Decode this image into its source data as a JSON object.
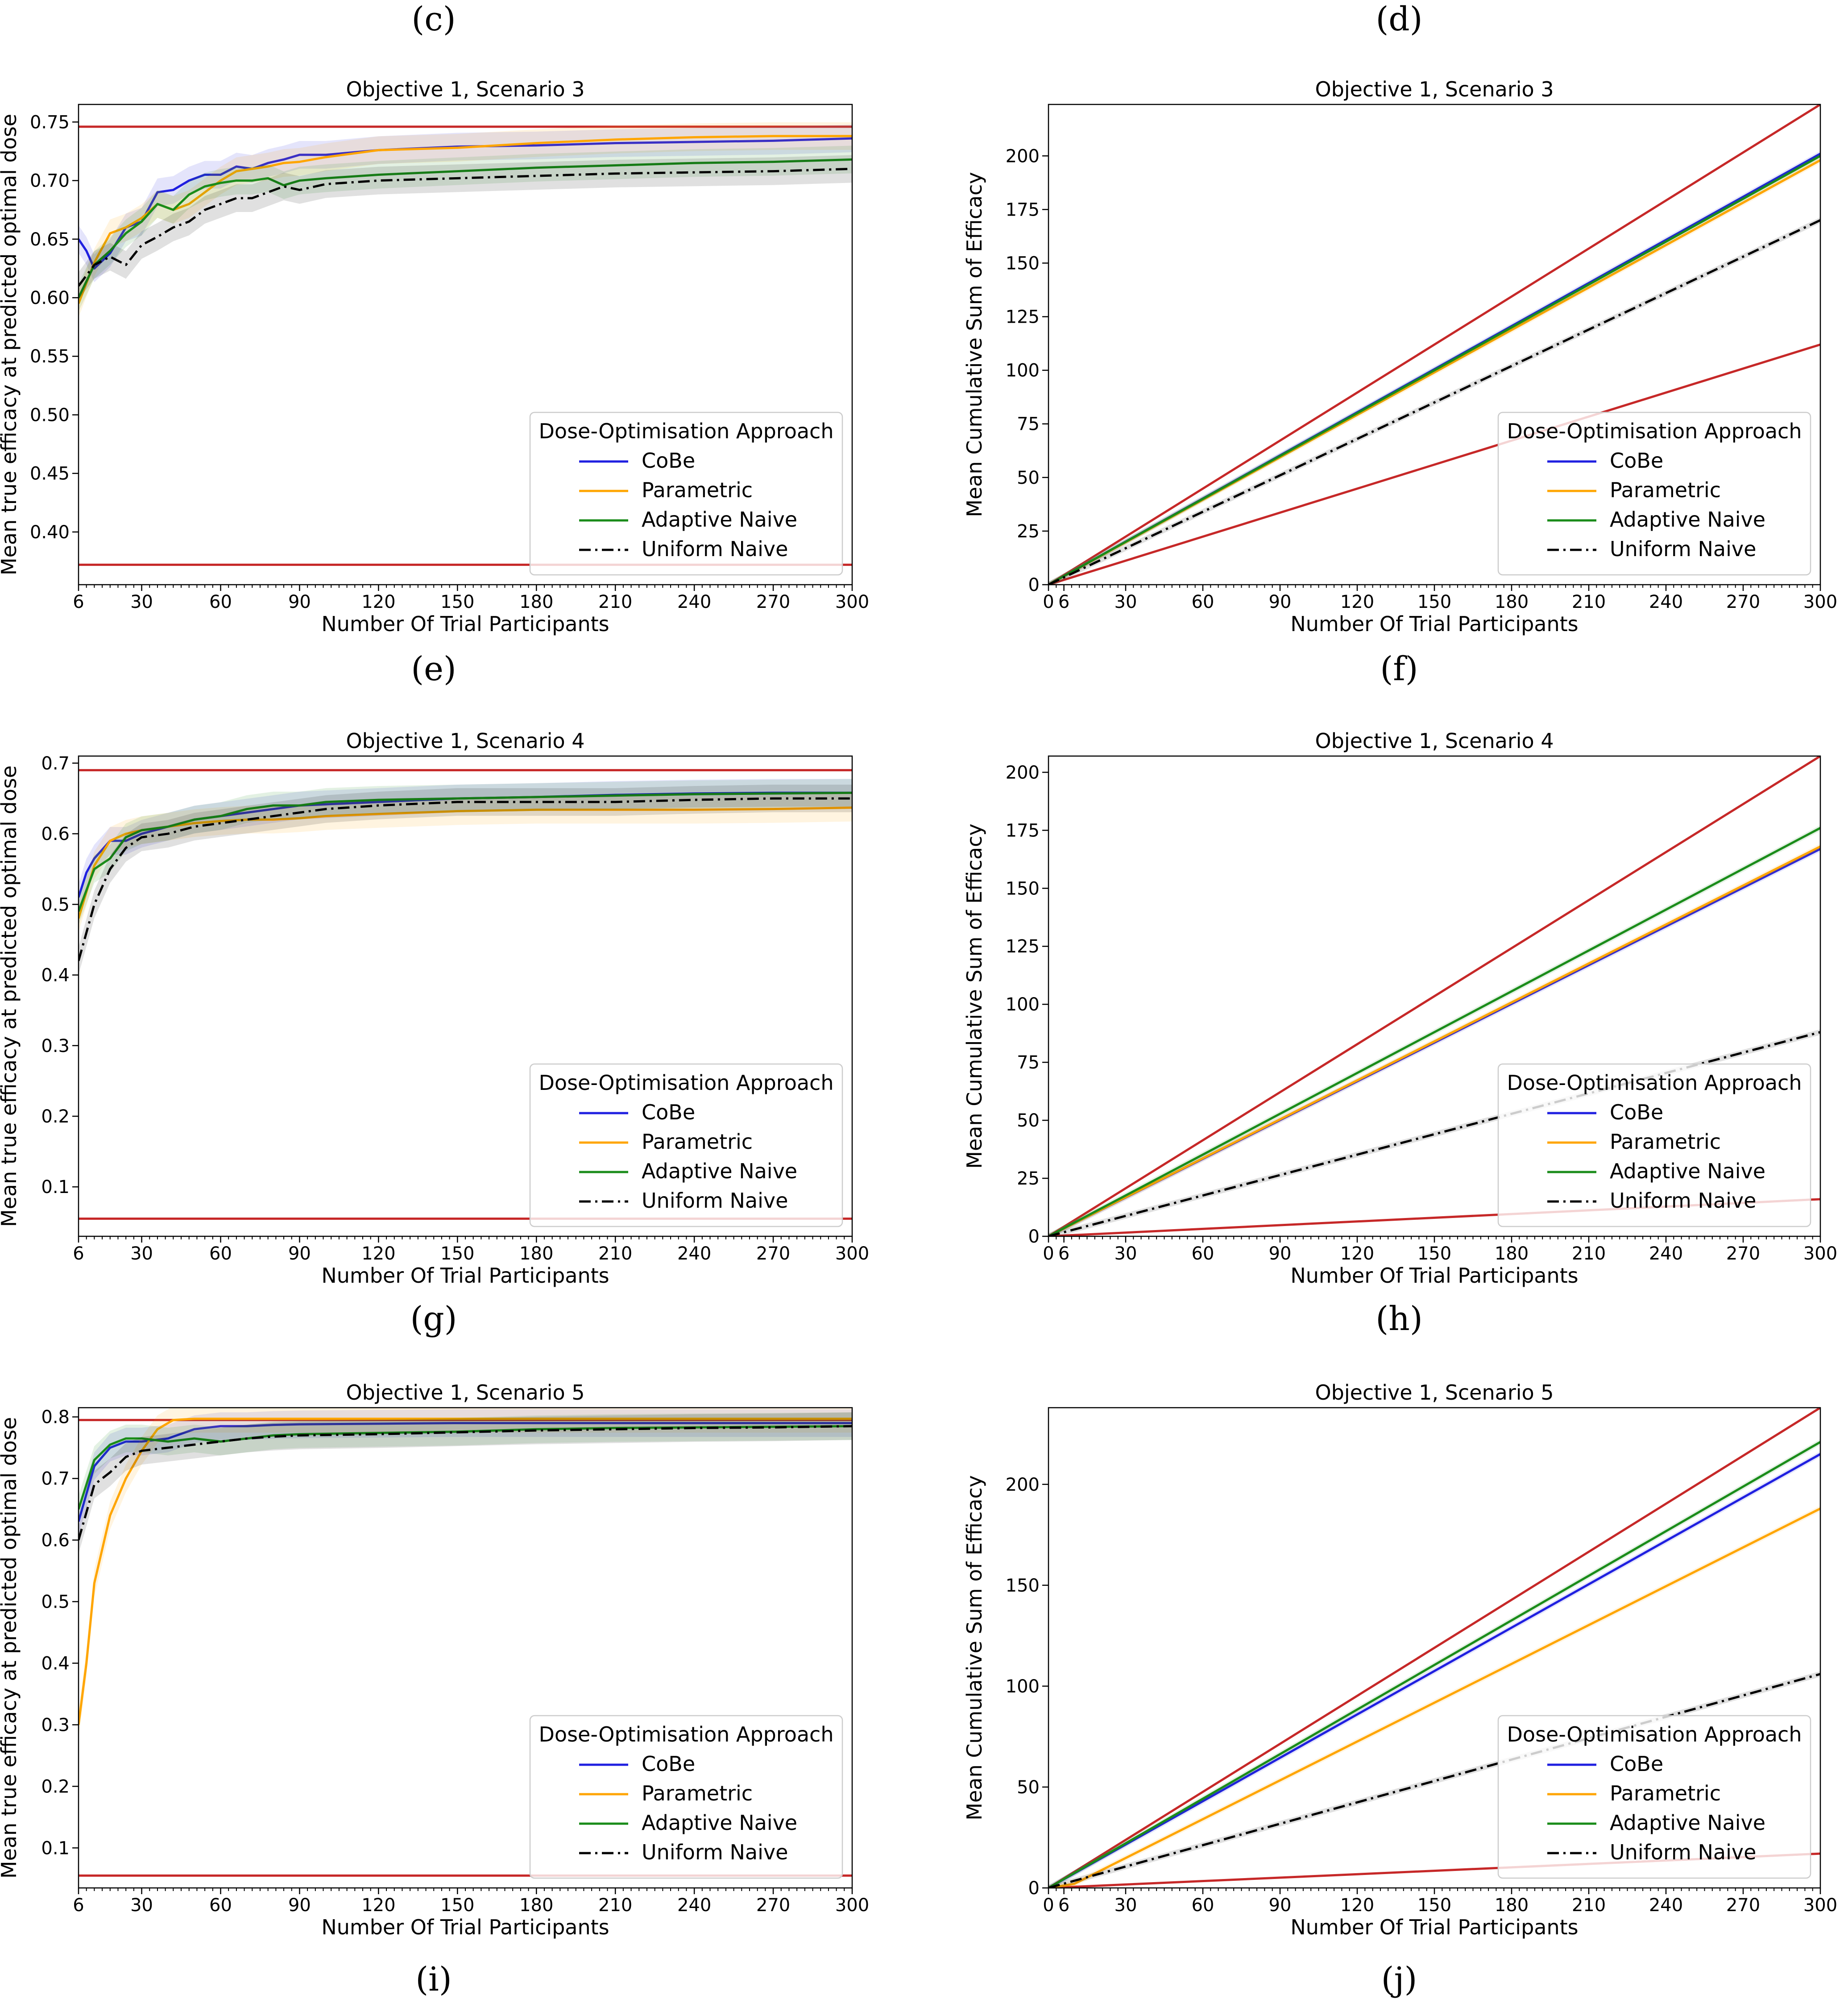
{
  "panel_labels": [
    "(c)",
    "(d)",
    "(e)",
    "(f)",
    "(g)",
    "(h)",
    "(i)",
    "(j)"
  ],
  "legend": {
    "title": "Dose-Optimisation Approach",
    "entries": [
      {
        "name": "CoBe",
        "color": "#1f1fe0",
        "dash": "solid"
      },
      {
        "name": "Parametric",
        "color": "#ffa500",
        "dash": "solid"
      },
      {
        "name": "Adaptive Naive",
        "color": "#1a8c1a",
        "dash": "solid"
      },
      {
        "name": "Uniform Naive",
        "color": "#000000",
        "dash": "dashdot"
      }
    ]
  },
  "reference_color": "#c62828",
  "chart_data": [
    {
      "type": "line",
      "title": "Objective 1, Scenario 3",
      "xlabel": "Number Of Trial Participants",
      "ylabel": "Mean true efficacy at predicted optimal dose",
      "xlim": [
        6,
        300
      ],
      "ylim": [
        0.355,
        0.765
      ],
      "xticks": [
        6,
        30,
        60,
        90,
        120,
        150,
        180,
        210,
        240,
        270,
        300
      ],
      "yticks": [
        0.4,
        0.45,
        0.5,
        0.55,
        0.6,
        0.65,
        0.7,
        0.75
      ],
      "ytick_labels": [
        "0.40",
        "0.45",
        "0.50",
        "0.55",
        "0.60",
        "0.65",
        "0.70",
        "0.75"
      ],
      "reference_lines": [
        {
          "x": [
            6,
            300
          ],
          "y": [
            0.746,
            0.746
          ]
        },
        {
          "x": [
            6,
            300
          ],
          "y": [
            0.372,
            0.372
          ]
        }
      ],
      "series": [
        {
          "name": "CoBe",
          "x": [
            6,
            9,
            12,
            18,
            24,
            30,
            36,
            42,
            48,
            54,
            60,
            66,
            72,
            78,
            84,
            90,
            100,
            120,
            150,
            180,
            210,
            240,
            270,
            300
          ],
          "y": [
            0.65,
            0.64,
            0.625,
            0.638,
            0.66,
            0.665,
            0.69,
            0.692,
            0.7,
            0.705,
            0.705,
            0.712,
            0.71,
            0.715,
            0.718,
            0.722,
            0.722,
            0.726,
            0.729,
            0.73,
            0.732,
            0.733,
            0.734,
            0.736
          ]
        },
        {
          "name": "Parametric",
          "x": [
            6,
            12,
            18,
            24,
            30,
            36,
            42,
            48,
            54,
            60,
            66,
            72,
            78,
            84,
            90,
            100,
            120,
            150,
            180,
            210,
            240,
            270,
            300
          ],
          "y": [
            0.595,
            0.63,
            0.655,
            0.66,
            0.668,
            0.68,
            0.675,
            0.68,
            0.69,
            0.7,
            0.708,
            0.71,
            0.712,
            0.715,
            0.716,
            0.72,
            0.726,
            0.728,
            0.732,
            0.735,
            0.737,
            0.738,
            0.738
          ]
        },
        {
          "name": "Adaptive Naive",
          "x": [
            6,
            12,
            18,
            24,
            30,
            36,
            42,
            48,
            54,
            60,
            66,
            72,
            78,
            84,
            90,
            100,
            120,
            150,
            180,
            210,
            240,
            270,
            300
          ],
          "y": [
            0.6,
            0.628,
            0.64,
            0.655,
            0.665,
            0.68,
            0.675,
            0.688,
            0.695,
            0.698,
            0.7,
            0.7,
            0.702,
            0.696,
            0.7,
            0.702,
            0.705,
            0.708,
            0.711,
            0.713,
            0.715,
            0.716,
            0.718
          ]
        },
        {
          "name": "Uniform Naive",
          "x": [
            6,
            12,
            18,
            24,
            30,
            36,
            42,
            48,
            54,
            60,
            66,
            72,
            78,
            84,
            90,
            100,
            120,
            150,
            180,
            210,
            240,
            270,
            300
          ],
          "y": [
            0.61,
            0.628,
            0.635,
            0.628,
            0.645,
            0.652,
            0.66,
            0.665,
            0.675,
            0.68,
            0.685,
            0.685,
            0.69,
            0.695,
            0.692,
            0.697,
            0.7,
            0.702,
            0.704,
            0.706,
            0.707,
            0.708,
            0.71
          ]
        }
      ]
    },
    {
      "type": "line",
      "title": "Objective 1, Scenario 3",
      "xlabel": "Number Of Trial Participants",
      "ylabel": "Mean Cumulative Sum of Efficacy",
      "xlim": [
        0,
        300
      ],
      "ylim": [
        0,
        224
      ],
      "xticks": [
        0,
        6,
        30,
        60,
        90,
        120,
        150,
        180,
        210,
        240,
        270,
        300
      ],
      "yticks": [
        0,
        25,
        50,
        75,
        100,
        125,
        150,
        175,
        200
      ],
      "ytick_labels": [
        "0",
        "25",
        "50",
        "75",
        "100",
        "125",
        "150",
        "175",
        "200"
      ],
      "reference_lines": [
        {
          "x": [
            0,
            300
          ],
          "y": [
            0,
            224
          ]
        },
        {
          "x": [
            0,
            300
          ],
          "y": [
            0,
            112
          ]
        }
      ],
      "series": [
        {
          "name": "CoBe",
          "x": [
            0,
            300
          ],
          "y": [
            0,
            201
          ]
        },
        {
          "name": "Parametric",
          "x": [
            0,
            300
          ],
          "y": [
            0,
            198
          ]
        },
        {
          "name": "Adaptive Naive",
          "x": [
            0,
            300
          ],
          "y": [
            0,
            200
          ]
        },
        {
          "name": "Uniform Naive",
          "x": [
            0,
            300
          ],
          "y": [
            0,
            170
          ]
        }
      ]
    },
    {
      "type": "line",
      "title": "Objective 1, Scenario 4",
      "xlabel": "Number Of Trial Participants",
      "ylabel": "Mean true efficacy at predicted optimal dose",
      "xlim": [
        6,
        300
      ],
      "ylim": [
        0.03,
        0.71
      ],
      "xticks": [
        6,
        30,
        60,
        90,
        120,
        150,
        180,
        210,
        240,
        270,
        300
      ],
      "yticks": [
        0.1,
        0.2,
        0.3,
        0.4,
        0.5,
        0.6,
        0.7
      ],
      "ytick_labels": [
        "0.1",
        "0.2",
        "0.3",
        "0.4",
        "0.5",
        "0.6",
        "0.7"
      ],
      "reference_lines": [
        {
          "x": [
            6,
            300
          ],
          "y": [
            0.69,
            0.69
          ]
        },
        {
          "x": [
            6,
            300
          ],
          "y": [
            0.055,
            0.055
          ]
        }
      ],
      "series": [
        {
          "name": "CoBe",
          "x": [
            6,
            9,
            12,
            18,
            24,
            30,
            40,
            50,
            60,
            70,
            80,
            90,
            120,
            150,
            180,
            210,
            240,
            270,
            300
          ],
          "y": [
            0.51,
            0.545,
            0.565,
            0.59,
            0.59,
            0.6,
            0.61,
            0.62,
            0.625,
            0.63,
            0.635,
            0.64,
            0.645,
            0.65,
            0.652,
            0.655,
            0.657,
            0.658,
            0.658
          ]
        },
        {
          "name": "Parametric",
          "x": [
            6,
            12,
            18,
            24,
            30,
            40,
            50,
            60,
            70,
            80,
            90,
            100,
            120,
            150,
            180,
            210,
            240,
            270,
            300
          ],
          "y": [
            0.48,
            0.555,
            0.59,
            0.6,
            0.605,
            0.61,
            0.615,
            0.618,
            0.62,
            0.62,
            0.622,
            0.625,
            0.628,
            0.632,
            0.634,
            0.634,
            0.634,
            0.635,
            0.637
          ]
        },
        {
          "name": "Adaptive Naive",
          "x": [
            6,
            12,
            18,
            24,
            30,
            40,
            50,
            60,
            70,
            80,
            90,
            100,
            120,
            150,
            180,
            210,
            240,
            270,
            300
          ],
          "y": [
            0.49,
            0.55,
            0.565,
            0.595,
            0.605,
            0.61,
            0.62,
            0.625,
            0.635,
            0.64,
            0.64,
            0.645,
            0.648,
            0.65,
            0.652,
            0.654,
            0.656,
            0.657,
            0.658
          ]
        },
        {
          "name": "Uniform Naive",
          "x": [
            6,
            12,
            18,
            24,
            30,
            40,
            50,
            60,
            70,
            80,
            90,
            100,
            120,
            150,
            180,
            210,
            240,
            270,
            300
          ],
          "y": [
            0.42,
            0.5,
            0.55,
            0.58,
            0.595,
            0.6,
            0.61,
            0.615,
            0.62,
            0.625,
            0.63,
            0.635,
            0.64,
            0.645,
            0.645,
            0.645,
            0.648,
            0.65,
            0.65
          ]
        }
      ]
    },
    {
      "type": "line",
      "title": "Objective 1, Scenario 4",
      "xlabel": "Number Of Trial Participants",
      "ylabel": "Mean Cumulative Sum of Efficacy",
      "xlim": [
        0,
        300
      ],
      "ylim": [
        0,
        207
      ],
      "xticks": [
        0,
        6,
        30,
        60,
        90,
        120,
        150,
        180,
        210,
        240,
        270,
        300
      ],
      "yticks": [
        0,
        25,
        50,
        75,
        100,
        125,
        150,
        175,
        200
      ],
      "ytick_labels": [
        "0",
        "25",
        "50",
        "75",
        "100",
        "125",
        "150",
        "175",
        "200"
      ],
      "reference_lines": [
        {
          "x": [
            0,
            300
          ],
          "y": [
            0,
            207
          ]
        },
        {
          "x": [
            0,
            300
          ],
          "y": [
            0,
            16
          ]
        }
      ],
      "series": [
        {
          "name": "CoBe",
          "x": [
            0,
            300
          ],
          "y": [
            0,
            167
          ]
        },
        {
          "name": "Parametric",
          "x": [
            0,
            300
          ],
          "y": [
            0,
            168
          ]
        },
        {
          "name": "Adaptive Naive",
          "x": [
            0,
            300
          ],
          "y": [
            0,
            176
          ]
        },
        {
          "name": "Uniform Naive",
          "x": [
            0,
            300
          ],
          "y": [
            0,
            88
          ]
        }
      ]
    },
    {
      "type": "line",
      "title": "Objective 1, Scenario 5",
      "xlabel": "Number Of Trial Participants",
      "ylabel": "Mean true efficacy at predicted optimal dose",
      "xlim": [
        6,
        300
      ],
      "ylim": [
        0.035,
        0.815
      ],
      "xticks": [
        6,
        30,
        60,
        90,
        120,
        150,
        180,
        210,
        240,
        270,
        300
      ],
      "yticks": [
        0.1,
        0.2,
        0.3,
        0.4,
        0.5,
        0.6,
        0.7,
        0.8
      ],
      "ytick_labels": [
        "0.1",
        "0.2",
        "0.3",
        "0.4",
        "0.5",
        "0.6",
        "0.7",
        "0.8"
      ],
      "reference_lines": [
        {
          "x": [
            6,
            300
          ],
          "y": [
            0.795,
            0.795
          ]
        },
        {
          "x": [
            6,
            300
          ],
          "y": [
            0.055,
            0.055
          ]
        }
      ],
      "series": [
        {
          "name": "CoBe",
          "x": [
            6,
            12,
            18,
            24,
            30,
            40,
            50,
            60,
            70,
            80,
            90,
            120,
            150,
            180,
            210,
            240,
            270,
            300
          ],
          "y": [
            0.63,
            0.72,
            0.75,
            0.76,
            0.76,
            0.765,
            0.78,
            0.785,
            0.785,
            0.787,
            0.788,
            0.789,
            0.79,
            0.79,
            0.79,
            0.79,
            0.79,
            0.79
          ]
        },
        {
          "name": "Parametric",
          "x": [
            6,
            9,
            12,
            18,
            24,
            30,
            36,
            42,
            50,
            60,
            70,
            80,
            90,
            120,
            150,
            180,
            210,
            240,
            270,
            300
          ],
          "y": [
            0.3,
            0.4,
            0.53,
            0.64,
            0.7,
            0.745,
            0.78,
            0.795,
            0.797,
            0.797,
            0.797,
            0.797,
            0.797,
            0.797,
            0.797,
            0.797,
            0.797,
            0.797,
            0.797,
            0.797
          ]
        },
        {
          "name": "Adaptive Naive",
          "x": [
            6,
            12,
            18,
            24,
            30,
            40,
            50,
            60,
            70,
            80,
            90,
            120,
            150,
            180,
            210,
            240,
            270,
            300
          ],
          "y": [
            0.65,
            0.73,
            0.755,
            0.765,
            0.765,
            0.76,
            0.765,
            0.76,
            0.765,
            0.77,
            0.772,
            0.774,
            0.776,
            0.78,
            0.782,
            0.783,
            0.784,
            0.785
          ]
        },
        {
          "name": "Uniform Naive",
          "x": [
            6,
            12,
            18,
            24,
            30,
            40,
            50,
            60,
            70,
            80,
            90,
            120,
            150,
            180,
            210,
            240,
            270,
            300
          ],
          "y": [
            0.6,
            0.69,
            0.71,
            0.735,
            0.745,
            0.75,
            0.755,
            0.76,
            0.765,
            0.768,
            0.77,
            0.772,
            0.775,
            0.778,
            0.78,
            0.782,
            0.783,
            0.785
          ]
        }
      ]
    },
    {
      "type": "line",
      "title": "Objective 1, Scenario 5",
      "xlabel": "Number Of Trial Participants",
      "ylabel": "Mean Cumulative Sum of Efficacy",
      "xlim": [
        0,
        300
      ],
      "ylim": [
        0,
        238
      ],
      "xticks": [
        0,
        6,
        30,
        60,
        90,
        120,
        150,
        180,
        210,
        240,
        270,
        300
      ],
      "yticks": [
        0,
        50,
        100,
        150,
        200
      ],
      "ytick_labels": [
        "0",
        "50",
        "100",
        "150",
        "200"
      ],
      "reference_lines": [
        {
          "x": [
            0,
            300
          ],
          "y": [
            0,
            238
          ]
        },
        {
          "x": [
            0,
            300
          ],
          "y": [
            0,
            17
          ]
        }
      ],
      "series": [
        {
          "name": "CoBe",
          "x": [
            0,
            300
          ],
          "y": [
            0,
            215
          ]
        },
        {
          "name": "Parametric",
          "x": [
            0,
            10,
            300
          ],
          "y": [
            0,
            2,
            188
          ]
        },
        {
          "name": "Adaptive Naive",
          "x": [
            0,
            300
          ],
          "y": [
            0,
            221
          ]
        },
        {
          "name": "Uniform Naive",
          "x": [
            0,
            300
          ],
          "y": [
            0,
            106
          ]
        }
      ]
    }
  ]
}
